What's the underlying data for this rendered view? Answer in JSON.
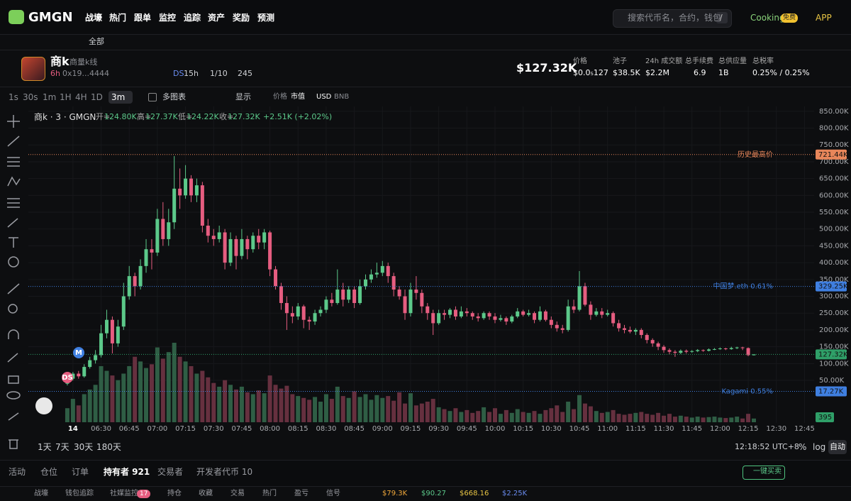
{
  "header": {
    "logo": "GMGN",
    "nav": [
      "战壕",
      "热门",
      "跟单",
      "监控",
      "追踪",
      "资产",
      "奖励",
      "预测"
    ],
    "search_placeholder": "搜索代币名，合约，钱包",
    "search_shortcut": "/",
    "cooking": "Cooking",
    "cooking_badge": "免费",
    "app": "APP"
  },
  "filter_bar": {
    "all": "全部"
  },
  "token": {
    "name": "商k",
    "tagline": "商量k线",
    "age": "6h",
    "address": "0x19...4444",
    "ds_label": "DS",
    "ds_age": "15h",
    "ratio": "1/10",
    "views": "245",
    "market_cap": "$127.32K",
    "stats": [
      {
        "label": "价格",
        "value": "$0.0₅127"
      },
      {
        "label": "池子",
        "value": "$38.5K"
      },
      {
        "label": "24h 成交额",
        "value": "$2.2M"
      },
      {
        "label": "总手续费",
        "value": "6.9"
      },
      {
        "label": "总供应量",
        "value": "1B"
      },
      {
        "label": "总税率",
        "value": "0.25% / 0.25%"
      }
    ]
  },
  "toolbar": {
    "intervals": [
      "1s",
      "30s",
      "1m",
      "1H",
      "4H",
      "1D"
    ],
    "active_interval": "3m",
    "multi_chart": "多图表",
    "display": "显示",
    "price": "价格",
    "market_cap": "市值",
    "usd": "USD",
    "bnb": "BNB"
  },
  "legend": {
    "title": "商k · 3 · GMGN",
    "ohlc": [
      {
        "key": "开=",
        "value": "124.80K"
      },
      {
        "key": "高=",
        "value": "127.37K"
      },
      {
        "key": "低=",
        "value": "124.22K"
      },
      {
        "key": "收=",
        "value": "127.32K"
      }
    ],
    "change": "+2.51K (+2.02%)"
  },
  "chart_data": {
    "type": "candlestick",
    "x": [
      "06:12",
      "06:15",
      "06:18",
      "06:21",
      "06:24",
      "06:27",
      "06:30",
      "06:33",
      "06:36",
      "06:39",
      "06:42",
      "06:45",
      "06:48",
      "06:51",
      "06:54",
      "06:57",
      "07:00",
      "07:03",
      "07:06",
      "07:09",
      "07:12",
      "07:15",
      "07:18",
      "07:21",
      "07:24",
      "07:27",
      "07:30",
      "07:33",
      "07:36",
      "07:39",
      "07:42",
      "07:45",
      "07:48",
      "07:51",
      "07:54",
      "07:57",
      "08:00",
      "08:03",
      "08:06",
      "08:09",
      "08:12",
      "08:15",
      "08:18",
      "08:21",
      "08:24",
      "08:27",
      "08:30",
      "08:33",
      "08:36",
      "08:39",
      "08:42",
      "08:45",
      "08:48",
      "08:51",
      "08:54",
      "08:57",
      "09:00",
      "09:03",
      "09:06",
      "09:09",
      "09:12",
      "09:15",
      "09:18",
      "09:21",
      "09:24",
      "09:27",
      "09:30",
      "09:33",
      "09:36",
      "09:39",
      "09:42",
      "09:45",
      "09:48",
      "09:51",
      "09:54",
      "09:57",
      "10:00",
      "10:03",
      "10:06",
      "10:09",
      "10:12",
      "10:15",
      "10:18",
      "10:21",
      "10:24",
      "10:27",
      "10:30",
      "10:33",
      "10:36",
      "10:39",
      "10:42",
      "10:45",
      "10:48",
      "10:51",
      "10:54",
      "10:57",
      "11:00",
      "11:03",
      "11:06",
      "11:09",
      "11:12",
      "11:15",
      "11:18",
      "11:21",
      "11:24",
      "11:27",
      "11:30",
      "11:33",
      "11:36",
      "11:39",
      "11:42",
      "11:45",
      "11:48",
      "11:51",
      "11:54",
      "11:57",
      "12:00",
      "12:03",
      "12:06",
      "12:09",
      "12:12",
      "12:15",
      "12:18"
    ],
    "open": [
      40000,
      55000,
      70000,
      62000,
      90000,
      110000,
      125000,
      190000,
      230000,
      160000,
      210000,
      300000,
      360000,
      330000,
      390000,
      440000,
      430000,
      530000,
      470000,
      520000,
      620000,
      600000,
      650000,
      600000,
      630000,
      510000,
      480000,
      470000,
      490000,
      400000,
      470000,
      420000,
      470000,
      440000,
      480000,
      460000,
      490000,
      380000,
      330000,
      280000,
      250000,
      240000,
      270000,
      230000,
      225000,
      250000,
      260000,
      290000,
      280000,
      320000,
      290000,
      320000,
      280000,
      330000,
      350000,
      365000,
      370000,
      390000,
      360000,
      320000,
      300000,
      250000,
      320000,
      310000,
      270000,
      250000,
      220000,
      250000,
      245000,
      260000,
      240000,
      255000,
      250000,
      240000,
      235000,
      250000,
      240000,
      230000,
      235000,
      225000,
      240000,
      255000,
      245000,
      250000,
      230000,
      255000,
      230000,
      215000,
      205000,
      200000,
      270000,
      260000,
      330000,
      275000,
      245000,
      255000,
      245000,
      250000,
      220000,
      205000,
      200000,
      195000,
      200000,
      185000,
      170000,
      160000,
      150000,
      140000,
      135000,
      132000,
      138000,
      135000,
      137000,
      140000,
      138000,
      142000,
      143000,
      145000,
      143000,
      146000,
      148000,
      146000,
      124800
    ],
    "high": [
      60000,
      75000,
      78000,
      98000,
      120000,
      140000,
      215000,
      260000,
      240000,
      230000,
      340000,
      390000,
      370000,
      410000,
      470000,
      470000,
      560000,
      580000,
      560000,
      717000,
      680000,
      690000,
      660000,
      650000,
      640000,
      530000,
      500000,
      510000,
      500000,
      490000,
      480000,
      500000,
      480000,
      490000,
      500000,
      500000,
      495000,
      390000,
      340000,
      300000,
      270000,
      280000,
      275000,
      240000,
      260000,
      270000,
      300000,
      310000,
      380000,
      340000,
      330000,
      330000,
      350000,
      365000,
      380000,
      400000,
      405000,
      400000,
      370000,
      330000,
      320000,
      340000,
      360000,
      320000,
      280000,
      260000,
      260000,
      260000,
      265000,
      270000,
      270000,
      265000,
      255000,
      250000,
      255000,
      255000,
      250000,
      245000,
      240000,
      245000,
      265000,
      260000,
      260000,
      255000,
      270000,
      260000,
      240000,
      225000,
      215000,
      290000,
      290000,
      375000,
      340000,
      285000,
      265000,
      265000,
      260000,
      255000,
      230000,
      215000,
      210000,
      205000,
      205000,
      190000,
      175000,
      165000,
      155000,
      145000,
      140000,
      142000,
      142000,
      140000,
      143000,
      142000,
      145000,
      146000,
      148000,
      147000,
      150000,
      150000,
      150000,
      148000,
      127370
    ],
    "low": [
      35000,
      50000,
      55000,
      58000,
      85000,
      100000,
      118000,
      175000,
      130000,
      150000,
      200000,
      290000,
      300000,
      320000,
      370000,
      380000,
      420000,
      450000,
      450000,
      500000,
      560000,
      590000,
      580000,
      580000,
      490000,
      460000,
      450000,
      460000,
      380000,
      390000,
      380000,
      410000,
      410000,
      430000,
      440000,
      440000,
      360000,
      320000,
      260000,
      200000,
      220000,
      230000,
      205000,
      200000,
      215000,
      240000,
      250000,
      270000,
      275000,
      270000,
      280000,
      265000,
      275000,
      320000,
      340000,
      355000,
      360000,
      340000,
      300000,
      290000,
      230000,
      240000,
      290000,
      250000,
      230000,
      185000,
      215000,
      230000,
      235000,
      230000,
      235000,
      240000,
      230000,
      225000,
      230000,
      230000,
      220000,
      225000,
      215000,
      220000,
      235000,
      240000,
      240000,
      220000,
      225000,
      225000,
      205000,
      195000,
      190000,
      195000,
      250000,
      255000,
      270000,
      230000,
      240000,
      235000,
      240000,
      210000,
      195000,
      190000,
      190000,
      185000,
      175000,
      160000,
      150000,
      140000,
      132000,
      128000,
      120000,
      128000,
      130000,
      132000,
      134000,
      135000,
      136000,
      140000,
      141000,
      140000,
      141000,
      143000,
      140000,
      122000,
      124220
    ],
    "close": [
      55000,
      70000,
      62000,
      90000,
      110000,
      125000,
      190000,
      230000,
      160000,
      210000,
      300000,
      360000,
      330000,
      390000,
      440000,
      430000,
      530000,
      470000,
      520000,
      620000,
      600000,
      650000,
      600000,
      630000,
      510000,
      480000,
      470000,
      490000,
      400000,
      470000,
      420000,
      470000,
      440000,
      480000,
      460000,
      490000,
      380000,
      330000,
      280000,
      250000,
      240000,
      270000,
      230000,
      225000,
      250000,
      260000,
      290000,
      280000,
      320000,
      290000,
      320000,
      280000,
      330000,
      350000,
      365000,
      370000,
      390000,
      360000,
      320000,
      300000,
      250000,
      320000,
      310000,
      270000,
      250000,
      220000,
      250000,
      245000,
      260000,
      240000,
      255000,
      250000,
      240000,
      235000,
      250000,
      240000,
      230000,
      235000,
      225000,
      240000,
      255000,
      245000,
      250000,
      230000,
      255000,
      230000,
      215000,
      205000,
      200000,
      270000,
      260000,
      330000,
      275000,
      245000,
      255000,
      245000,
      250000,
      220000,
      205000,
      200000,
      195000,
      200000,
      185000,
      170000,
      160000,
      150000,
      140000,
      135000,
      132000,
      138000,
      135000,
      137000,
      140000,
      138000,
      142000,
      143000,
      145000,
      143000,
      146000,
      148000,
      146000,
      125000,
      127320
    ],
    "volume": [
      1500,
      2500,
      1800,
      3000,
      3500,
      4000,
      6000,
      5500,
      5000,
      4500,
      5200,
      6000,
      7000,
      6500,
      5800,
      6200,
      8000,
      6800,
      7500,
      8500,
      7000,
      6500,
      6000,
      5200,
      5500,
      4800,
      4200,
      3800,
      4500,
      4000,
      3500,
      3800,
      3200,
      3000,
      3400,
      3100,
      5000,
      4000,
      3600,
      3900,
      3000,
      2800,
      2600,
      2400,
      2700,
      2200,
      3000,
      2500,
      3800,
      2800,
      2600,
      3300,
      2700,
      3000,
      2400,
      2900,
      2600,
      2800,
      2300,
      3200,
      2000,
      3100,
      1800,
      2000,
      2200,
      2500,
      1600,
      1400,
      1200,
      1500,
      1100,
      1300,
      1000,
      1200,
      1600,
      1100,
      1500,
      900,
      1300,
      1000,
      1400,
      1100,
      1000,
      1200,
      900,
      1300,
      1500,
      1800,
      1100,
      2200,
      1400,
      2900,
      2000,
      1700,
      1200,
      1000,
      1100,
      1300,
      900,
      800,
      900,
      1000,
      1100,
      900,
      800,
      1000,
      700,
      900,
      600,
      700,
      600,
      500,
      600,
      500,
      550,
      600,
      500,
      450,
      500,
      600,
      400,
      900,
      395
    ],
    "xlim": [
      "06:09",
      "12:49"
    ],
    "ylim": [
      -85000,
      875000
    ],
    "yticks": [
      {
        "value": 50000,
        "label": "50.00K"
      },
      {
        "value": 100000,
        "label": "100.00K"
      },
      {
        "value": 150000,
        "label": "150.00K"
      },
      {
        "value": 200000,
        "label": "200.00K"
      },
      {
        "value": 250000,
        "label": "250.00K"
      },
      {
        "value": 300000,
        "label": "300.00K"
      },
      {
        "value": 350000,
        "label": "350.00K"
      },
      {
        "value": 400000,
        "label": "400.00K"
      },
      {
        "value": 450000,
        "label": "450.00K"
      },
      {
        "value": 500000,
        "label": "500.00K"
      },
      {
        "value": 550000,
        "label": "550.00K"
      },
      {
        "value": 600000,
        "label": "600.00K"
      },
      {
        "value": 650000,
        "label": "650.00K"
      },
      {
        "value": 700000,
        "label": "700.00K"
      },
      {
        "value": 750000,
        "label": "750.00K"
      },
      {
        "value": 800000,
        "label": "800.00K"
      },
      {
        "value": 850000,
        "label": "850.00K"
      }
    ],
    "xticks": [
      {
        "value": "06:15",
        "label": "14"
      },
      "06:30",
      "06:45",
      "07:00",
      "07:15",
      "07:30",
      "07:45",
      "08:00",
      "08:15",
      "08:30",
      "08:45",
      "09:00",
      "09:15",
      "09:30",
      "09:45",
      "10:00",
      "10:15",
      "10:30",
      "10:45",
      "11:00",
      "11:15",
      "11:30",
      "11:45",
      "12:00",
      "12:15",
      "12:30",
      "12:45"
    ],
    "price_lines": [
      {
        "value": 721440,
        "label": "721.44K",
        "text": "历史最高价",
        "color": "#e8865a"
      },
      {
        "value": 329250,
        "label": "329.25K",
        "text": "中国梦.eth 0.61%",
        "color": "#3f7fe0"
      },
      {
        "value": 127320,
        "label": "127.32K",
        "color": "#2f9f68"
      },
      {
        "value": 17270,
        "label": "17.27K",
        "text": "Kagami 0.55%",
        "color": "#3f7fe0"
      }
    ],
    "up_color": "#5cc98a",
    "down_color": "#e65d80",
    "volume_up_color": "#2f5e45",
    "volume_down_color": "#66303f",
    "grid": true,
    "markers": [
      "M",
      "DS"
    ]
  },
  "range_bar": {
    "ranges": [
      "1天",
      "7天",
      "30天",
      "180天"
    ],
    "clock": "12:18:52 UTC+8",
    "percent": "%",
    "log": "log",
    "auto": "自动"
  },
  "tabs": {
    "items": [
      "活动",
      "仓位",
      "订单",
      "持有者 921",
      "交易者",
      "开发者代币 10"
    ],
    "quick_trade": "一键买卖"
  },
  "footer": {
    "items": [
      "战壕",
      "钱包追踪",
      "社媒监控",
      "持仓",
      "收藏",
      "交易",
      "热门",
      "盈亏",
      "信号"
    ],
    "badge": "17",
    "prices": [
      "$79.3K",
      "$90.27",
      "$668.16",
      "$2.25K"
    ]
  }
}
